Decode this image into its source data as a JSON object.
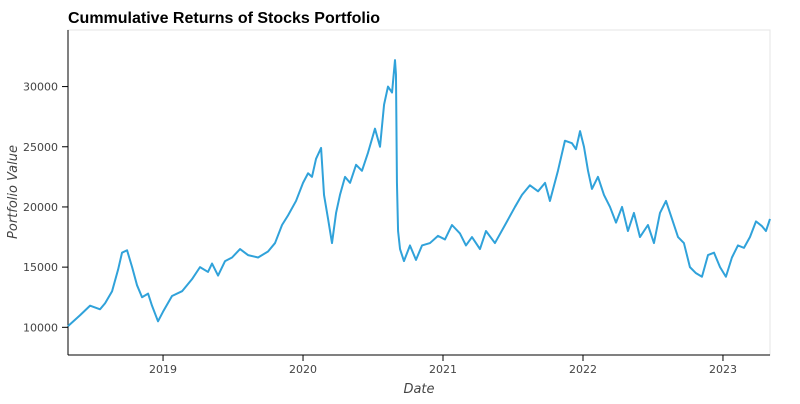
{
  "chart_data": {
    "type": "line",
    "title": "Cummulative Returns of Stocks Portfolio",
    "x_label": "Date",
    "y_label": "Portfolio Value",
    "grid": false,
    "xlim": [
      2018.321,
      2023.336
    ],
    "xticks": [
      2019,
      2020,
      2021,
      2022,
      2023
    ],
    "ylim": [
      7700,
      34700
    ],
    "yticks": [
      10000,
      15000,
      20000,
      25000,
      30000
    ],
    "series": [
      {
        "name": "Portfolio Value",
        "color": "#30a2da",
        "x": [
          2018.321,
          2018.407,
          2018.479,
          2018.55,
          2018.586,
          2018.636,
          2018.679,
          2018.707,
          2018.743,
          2018.779,
          2018.814,
          2018.85,
          2018.893,
          2018.921,
          2018.964,
          2019,
          2019.064,
          2019.136,
          2019.207,
          2019.264,
          2019.321,
          2019.35,
          2019.393,
          2019.443,
          2019.493,
          2019.55,
          2019.607,
          2019.679,
          2019.75,
          2019.8,
          2019.85,
          2019.893,
          2019.95,
          2020,
          2020.036,
          2020.064,
          2020.093,
          2020.129,
          2020.15,
          2020.179,
          2020.207,
          2020.236,
          2020.264,
          2020.3,
          2020.336,
          2020.379,
          2020.421,
          2020.464,
          2020.514,
          2020.55,
          2020.579,
          2020.607,
          2020.636,
          2020.657,
          2020.664,
          2020.671,
          2020.679,
          2020.693,
          2020.721,
          2020.764,
          2020.807,
          2020.85,
          2020.907,
          2020.964,
          2021.014,
          2021.064,
          2021.121,
          2021.164,
          2021.207,
          2021.264,
          2021.307,
          2021.371,
          2021.443,
          2021.514,
          2021.564,
          2021.621,
          2021.679,
          2021.729,
          2021.764,
          2021.821,
          2021.871,
          2021.921,
          2021.95,
          2021.979,
          2022.007,
          2022.036,
          2022.064,
          2022.107,
          2022.15,
          2022.193,
          2022.236,
          2022.279,
          2022.321,
          2022.364,
          2022.407,
          2022.464,
          2022.507,
          2022.55,
          2022.593,
          2022.636,
          2022.679,
          2022.721,
          2022.764,
          2022.807,
          2022.85,
          2022.893,
          2022.936,
          2022.979,
          2023.021,
          2023.064,
          2023.107,
          2023.15,
          2023.193,
          2023.236,
          2023.279,
          2023.307,
          2023.336
        ],
        "values": [
          10100,
          11000,
          11800,
          11500,
          12000,
          13000,
          14800,
          16200,
          16400,
          15000,
          13500,
          12500,
          12800,
          11800,
          10500,
          11300,
          12600,
          13000,
          14000,
          15000,
          14600,
          15300,
          14300,
          15500,
          15800,
          16500,
          16000,
          15800,
          16300,
          17000,
          18500,
          19300,
          20500,
          22000,
          22800,
          22500,
          24000,
          24900,
          21000,
          19000,
          17000,
          19500,
          21000,
          22500,
          22000,
          23500,
          23000,
          24500,
          26500,
          25000,
          28500,
          30000,
          29500,
          32200,
          31000,
          22000,
          18000,
          16500,
          15500,
          16800,
          15600,
          16800,
          17000,
          17600,
          17300,
          18500,
          17800,
          16800,
          17500,
          16500,
          18000,
          17000,
          18500,
          20000,
          21000,
          21800,
          21300,
          22000,
          20500,
          23000,
          25500,
          25300,
          24800,
          26300,
          25000,
          23000,
          21500,
          22500,
          21000,
          20000,
          18700,
          20000,
          18000,
          19500,
          17500,
          18500,
          17000,
          19500,
          20500,
          19000,
          17500,
          17000,
          15000,
          14500,
          14200,
          16000,
          16200,
          15000,
          14200,
          15800,
          16800,
          16600,
          17500,
          18800,
          18400,
          18000,
          19000
        ]
      }
    ]
  }
}
